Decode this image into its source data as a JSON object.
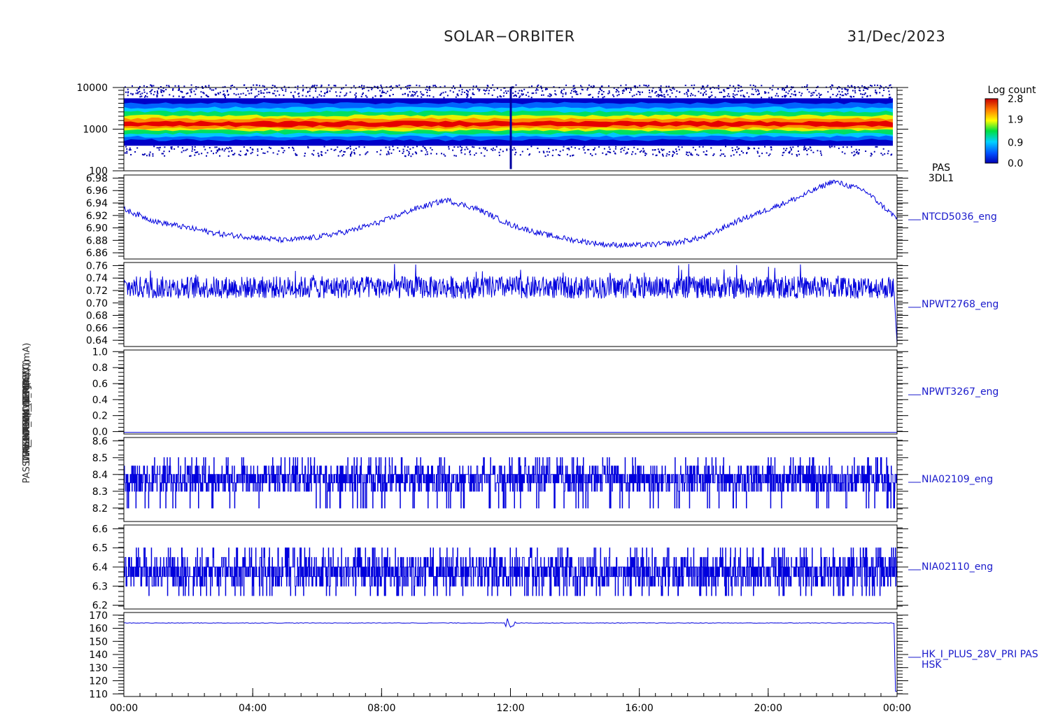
{
  "header": {
    "mission": "SOLAR−ORBITER",
    "date": "31/Dec/2023"
  },
  "colors": {
    "trace": "#0000dd",
    "axis": "#000000",
    "label": "#1a1acc"
  },
  "chart_data": {
    "type": "line",
    "x_ticks": [
      "00:00",
      "04:00",
      "08:00",
      "12:00",
      "16:00",
      "20:00",
      "00:00"
    ],
    "x_range_hours": [
      0,
      24
    ],
    "panels": [
      {
        "type": "heatmap",
        "name": "PAS",
        "label_lines": [
          "PAS",
          "3DL1"
        ],
        "ylabel": "E (eV)",
        "yscale": "log",
        "ylim": [
          100,
          10000
        ],
        "yticks": [
          "10000",
          "1000",
          "100"
        ],
        "colorbar": {
          "title": "Log count",
          "ticks": [
            "2.8",
            "1.9",
            "0.9",
            "0.0"
          ],
          "range": [
            0.0,
            2.8
          ]
        },
        "band": {
          "peak_energy_eV": 1200,
          "core_range_eV": [
            700,
            3500
          ],
          "full_range_eV": [
            400,
            5500
          ]
        }
      },
      {
        "type": "line",
        "name": "NTCD5036_eng",
        "ylabel": "Apx Temp (Deg C)",
        "ylim": [
          6.85,
          6.985
        ],
        "yticks": [
          "6.98",
          "6.96",
          "6.94",
          "6.92",
          "6.90",
          "6.88",
          "6.86"
        ],
        "x": [
          0,
          1,
          2,
          3,
          4,
          5,
          6,
          7,
          8,
          9,
          10,
          11,
          12,
          13,
          14,
          15,
          16,
          17,
          18,
          19,
          20,
          21,
          22,
          23,
          24
        ],
        "y": [
          6.93,
          6.91,
          6.9,
          6.89,
          6.885,
          6.88,
          6.885,
          6.895,
          6.91,
          6.93,
          6.945,
          6.93,
          6.905,
          6.89,
          6.88,
          6.873,
          6.872,
          6.875,
          6.885,
          6.91,
          6.93,
          6.95,
          6.975,
          6.96,
          6.915
        ]
      },
      {
        "type": "line",
        "name": "NPWT2768_eng",
        "ylabel": "SWA_EOBOX_TEMP (°C)",
        "ylim": [
          0.63,
          0.765
        ],
        "yticks": [
          "0.76",
          "0.74",
          "0.72",
          "0.70",
          "0.68",
          "0.66",
          "0.64"
        ],
        "mean": 0.725,
        "noise_range": [
          0.715,
          0.745
        ],
        "end_drop": 0.635
      },
      {
        "type": "line",
        "name": "NPWT3267_eng",
        "ylabel": "SWA_CU_TEMP",
        "ylim": [
          -0.03,
          1.02
        ],
        "yticks": [
          "1.0",
          "0.8",
          "0.6",
          "0.4",
          "0.2",
          "0.0"
        ],
        "constant": 0.0
      },
      {
        "type": "line",
        "name": "NIA02109_eng",
        "ylabel": "THERMCA4_CUP (mV)",
        "ylim": [
          8.12,
          8.62
        ],
        "yticks": [
          "8.6",
          "8.5",
          "8.4",
          "8.3",
          "8.2"
        ],
        "levels": [
          8.2,
          8.3,
          8.35,
          8.4,
          8.45,
          8.5
        ]
      },
      {
        "type": "line",
        "name": "NIA02110_eng",
        "ylabel": "THERMCA4_FP (mV)",
        "ylim": [
          6.18,
          6.62
        ],
        "yticks": [
          "6.6",
          "6.5",
          "6.4",
          "6.3",
          "6.2"
        ],
        "levels": [
          6.25,
          6.3,
          6.35,
          6.4,
          6.45,
          6.5
        ]
      },
      {
        "type": "line",
        "name": "HK_I_PLUS_28V_PRI PAS",
        "label_lines": [
          "HK_I_PLUS_28V_PRI PAS",
          "HSK"
        ],
        "ylabel": "PAS DPU_HK_IMON_PDCU (mA)",
        "ylim": [
          108,
          172
        ],
        "yticks": [
          "170",
          "160",
          "150",
          "140",
          "130",
          "120",
          "110"
        ],
        "baseline": 164,
        "dip_at_hour": 12.0,
        "dip_value": 160,
        "end_drop": 112
      }
    ]
  }
}
